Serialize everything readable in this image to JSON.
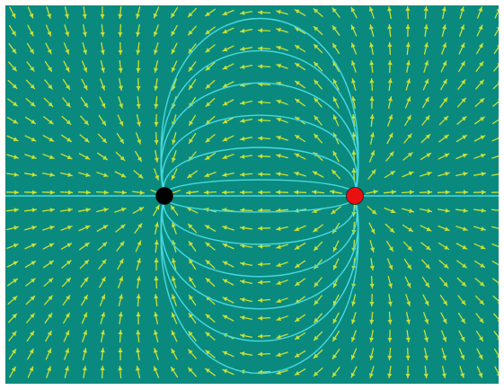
{
  "diagram": {
    "kind": "electric-dipole-field-map",
    "colors": {
      "background": "#0a8a7e",
      "frame": "#ffffff",
      "vector_arrows": "#c8e038",
      "field_lines": "#48d8e0",
      "negative_charge": "#000000",
      "positive_charge": "#e81010"
    },
    "charges": [
      {
        "name": "negative-charge",
        "sign": "negative",
        "color": "#000000"
      },
      {
        "name": "positive-charge",
        "sign": "positive",
        "color": "#e81010"
      }
    ],
    "field_line_count_per_side": 6,
    "arrow_direction": "from-positive-to-negative"
  }
}
